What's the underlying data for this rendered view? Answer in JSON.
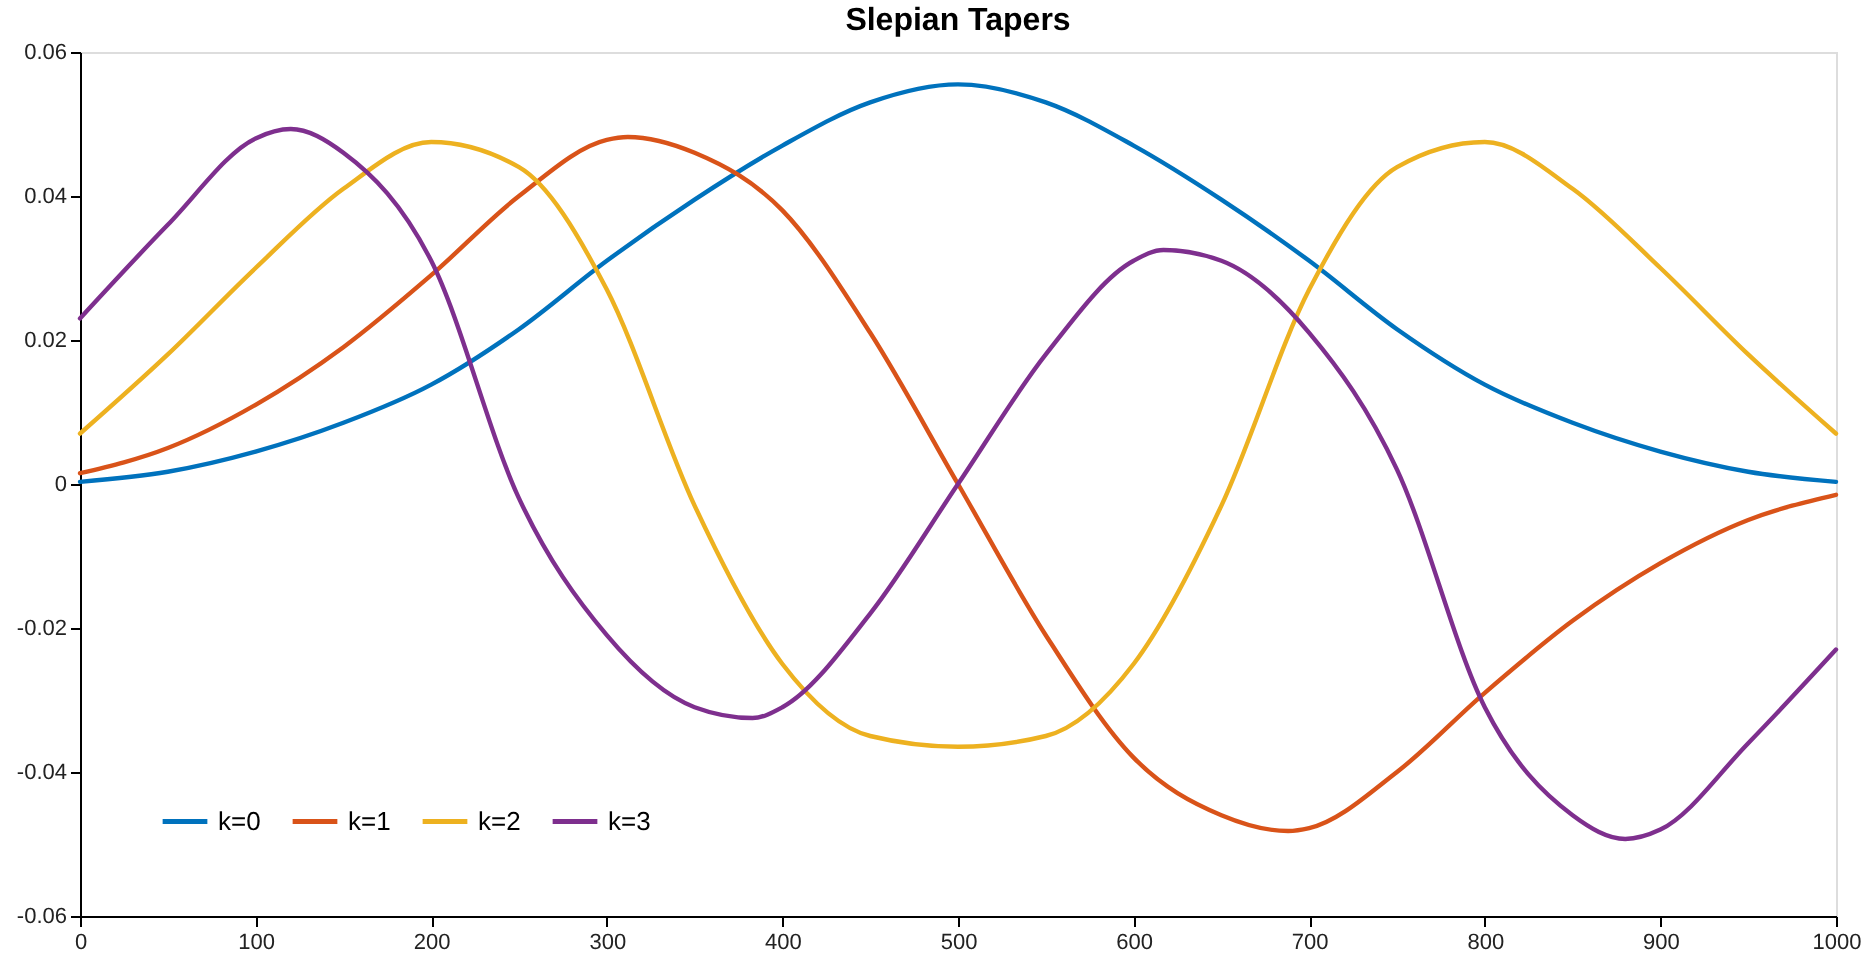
{
  "chart_data": {
    "type": "line",
    "title": "Slepian Tapers",
    "xlim": [
      0,
      1000
    ],
    "xticks": [
      0,
      100,
      200,
      300,
      400,
      500,
      600,
      700,
      800,
      900,
      1000
    ],
    "ylim": [
      -0.06,
      0.06
    ],
    "yticks": [
      -0.06,
      -0.04,
      -0.02,
      0,
      0.02,
      0.04,
      0.06
    ],
    "grid": false,
    "legend": "bottom left",
    "marker": "none",
    "line_style": "solid",
    "series": [
      {
        "name": "k=0",
        "color": "#0072bd",
        "x": [
          0,
          50,
          100,
          150,
          200,
          250,
          300,
          350,
          400,
          450,
          500,
          550,
          600,
          650,
          700,
          750,
          800,
          850,
          900,
          950,
          1000
        ],
        "values": [
          0.0003,
          0.0017,
          0.0045,
          0.0085,
          0.0138,
          0.0215,
          0.031,
          0.0395,
          0.047,
          0.053,
          0.0555,
          0.053,
          0.047,
          0.0395,
          0.031,
          0.0215,
          0.0138,
          0.0085,
          0.0045,
          0.0017,
          0.0003
        ]
      },
      {
        "name": "k=1",
        "color": "#d95319",
        "x": [
          0,
          50,
          100,
          150,
          200,
          250,
          300,
          312,
          350,
          400,
          450,
          500,
          550,
          600,
          650,
          688,
          700,
          750,
          800,
          850,
          900,
          950,
          1000
        ],
        "values": [
          0.0015,
          0.005,
          0.011,
          0.019,
          0.029,
          0.04,
          0.0478,
          0.0482,
          0.046,
          0.038,
          0.021,
          0,
          -0.021,
          -0.038,
          -0.046,
          -0.0482,
          -0.0478,
          -0.04,
          -0.029,
          -0.019,
          -0.011,
          -0.005,
          -0.0015
        ]
      },
      {
        "name": "k=2",
        "color": "#edb120",
        "x": [
          0,
          50,
          100,
          150,
          200,
          250,
          300,
          350,
          400,
          450,
          500,
          550,
          600,
          650,
          700,
          750,
          800,
          850,
          900,
          950,
          1000
        ],
        "values": [
          0.007,
          0.018,
          0.03,
          0.041,
          0.0475,
          0.044,
          0.027,
          -0.003,
          -0.025,
          -0.035,
          -0.0365,
          -0.035,
          -0.025,
          -0.003,
          0.027,
          0.044,
          0.0475,
          0.041,
          0.03,
          0.018,
          0.007
        ]
      },
      {
        "name": "k=3",
        "color": "#7e2f8e",
        "x": [
          0,
          50,
          100,
          120,
          150,
          200,
          250,
          300,
          350,
          383,
          400,
          450,
          500,
          550,
          600,
          617,
          650,
          700,
          750,
          800,
          850,
          880,
          900,
          950,
          1000
        ],
        "values": [
          0.023,
          0.036,
          0.048,
          0.0493,
          0.046,
          0.031,
          -0.002,
          -0.021,
          -0.031,
          -0.0325,
          -0.031,
          -0.018,
          0,
          0.018,
          0.031,
          0.0325,
          0.031,
          0.021,
          0.002,
          -0.031,
          -0.046,
          -0.0493,
          -0.048,
          -0.036,
          -0.023
        ]
      }
    ]
  }
}
